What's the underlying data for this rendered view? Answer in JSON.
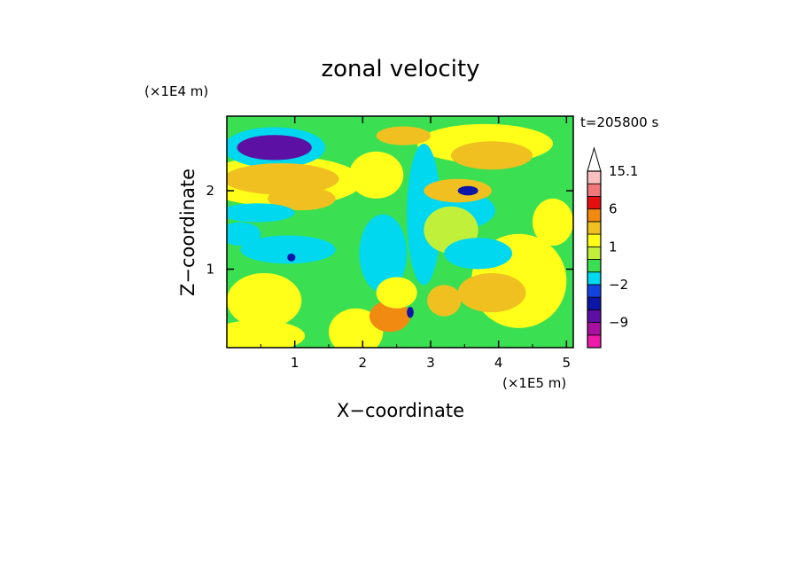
{
  "chart_data": {
    "type": "heatmap",
    "title": "zonal velocity",
    "time_label": "t=205800 s",
    "xlabel": "X−coordinate",
    "ylabel": "Z−coordinate",
    "x_scale_label": "(×1E5 m)",
    "y_scale_label": "(×1E4 m)",
    "x_ticks": [
      1,
      2,
      3,
      4,
      5
    ],
    "y_ticks": [
      1,
      2
    ],
    "xlim": [
      0,
      5.1
    ],
    "ylim": [
      0,
      2.95
    ],
    "grid": false,
    "colorbar": {
      "placement": "right",
      "levels": [
        {
          "from": -15,
          "to": -12,
          "color": "#ee1aa8"
        },
        {
          "from": -12,
          "to": -9,
          "color": "#a810a0"
        },
        {
          "from": -9,
          "to": -6,
          "color": "#5c10a4"
        },
        {
          "from": -6,
          "to": -3,
          "color": "#0d16a6"
        },
        {
          "from": -3,
          "to": -2,
          "color": "#1444e0"
        },
        {
          "from": -2,
          "to": -1,
          "color": "#00d8f0"
        },
        {
          "from": -1,
          "to": 0,
          "color": "#3ae052"
        },
        {
          "from": 0,
          "to": 1,
          "color": "#c0f03a"
        },
        {
          "from": 1,
          "to": 2,
          "color": "#ffff1a"
        },
        {
          "from": 2,
          "to": 3,
          "color": "#f0c020"
        },
        {
          "from": 3,
          "to": 6,
          "color": "#f08a10"
        },
        {
          "from": 6,
          "to": 9,
          "color": "#e41010"
        },
        {
          "from": 9,
          "to": 12,
          "color": "#f07878"
        },
        {
          "from": 12,
          "to": 15.1,
          "color": "#fac0c0"
        }
      ],
      "tick_labels": [
        "15.1",
        "6",
        "1",
        "−2",
        "−9"
      ],
      "tick_values": [
        15.1,
        6,
        1,
        -2,
        -9
      ]
    },
    "field": {
      "background_value": -0.5,
      "features": [
        {
          "x": 0.7,
          "z": 2.55,
          "rx": 0.55,
          "rz": 0.16,
          "value": -6.5
        },
        {
          "x": 0.7,
          "z": 2.55,
          "rx": 0.75,
          "rz": 0.26,
          "value": -1.5
        },
        {
          "x": 0.8,
          "z": 2.15,
          "rx": 0.85,
          "rz": 0.2,
          "value": 2.5
        },
        {
          "x": 0.8,
          "z": 2.12,
          "rx": 1.2,
          "rz": 0.32,
          "value": 1.5
        },
        {
          "x": 0.45,
          "z": 1.72,
          "rx": 0.55,
          "rz": 0.12,
          "value": -1.5
        },
        {
          "x": 0.9,
          "z": 1.25,
          "rx": 0.7,
          "rz": 0.18,
          "value": -1.5
        },
        {
          "x": 0.95,
          "z": 1.15,
          "rx": 0.06,
          "rz": 0.05,
          "value": -4
        },
        {
          "x": 0.55,
          "z": 0.6,
          "rx": 0.55,
          "rz": 0.35,
          "value": 1.5
        },
        {
          "x": 0.45,
          "z": 0.15,
          "rx": 0.7,
          "rz": 0.2,
          "value": 1.5
        },
        {
          "x": 1.9,
          "z": 0.2,
          "rx": 0.4,
          "rz": 0.3,
          "value": 1.5
        },
        {
          "x": 2.4,
          "z": 0.4,
          "rx": 0.3,
          "rz": 0.2,
          "value": 3.5
        },
        {
          "x": 2.3,
          "z": 1.2,
          "rx": 0.35,
          "rz": 0.5,
          "value": -1.5
        },
        {
          "x": 2.2,
          "z": 2.2,
          "rx": 0.4,
          "rz": 0.3,
          "value": 1.5
        },
        {
          "x": 2.6,
          "z": 2.7,
          "rx": 0.4,
          "rz": 0.12,
          "value": 2.5
        },
        {
          "x": 2.9,
          "z": 1.7,
          "rx": 0.25,
          "rz": 0.9,
          "value": -1.5
        },
        {
          "x": 2.7,
          "z": 0.45,
          "rx": 0.05,
          "rz": 0.07,
          "value": -5
        },
        {
          "x": 2.5,
          "z": 0.7,
          "rx": 0.3,
          "rz": 0.2,
          "value": 1.5
        },
        {
          "x": 3.4,
          "z": 2.0,
          "rx": 0.5,
          "rz": 0.15,
          "value": 2.5
        },
        {
          "x": 3.35,
          "z": 1.75,
          "rx": 0.6,
          "rz": 0.25,
          "value": -1.5
        },
        {
          "x": 3.55,
          "z": 2.0,
          "rx": 0.15,
          "rz": 0.06,
          "value": -5
        },
        {
          "x": 3.9,
          "z": 2.45,
          "rx": 0.6,
          "rz": 0.18,
          "value": 2.5
        },
        {
          "x": 3.8,
          "z": 2.6,
          "rx": 1.0,
          "rz": 0.25,
          "value": 1.5
        },
        {
          "x": 4.3,
          "z": 0.85,
          "rx": 0.7,
          "rz": 0.6,
          "value": 1.5
        },
        {
          "x": 3.2,
          "z": 0.6,
          "rx": 0.25,
          "rz": 0.2,
          "value": 2.5
        },
        {
          "x": 3.9,
          "z": 0.7,
          "rx": 0.5,
          "rz": 0.25,
          "value": 2.5
        },
        {
          "x": 3.7,
          "z": 1.2,
          "rx": 0.5,
          "rz": 0.2,
          "value": -1.5
        },
        {
          "x": 4.8,
          "z": 1.6,
          "rx": 0.3,
          "rz": 0.3,
          "value": 1.5
        },
        {
          "x": 1.1,
          "z": 1.9,
          "rx": 0.5,
          "rz": 0.15,
          "value": 2.5
        },
        {
          "x": 0.2,
          "z": 1.45,
          "rx": 0.3,
          "rz": 0.15,
          "value": -1.5
        },
        {
          "x": 3.3,
          "z": 1.5,
          "rx": 0.4,
          "rz": 0.3,
          "value": 0.5
        }
      ]
    }
  }
}
